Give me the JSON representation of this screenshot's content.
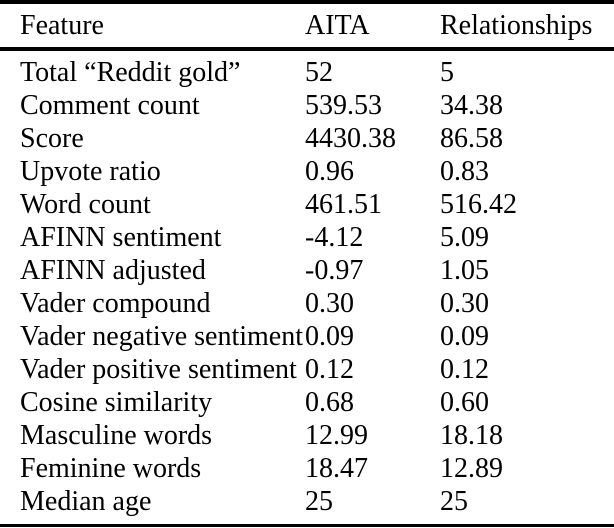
{
  "page": {
    "background_color": "#ffffff",
    "text_color": "#000000",
    "rule_color": "#000000"
  },
  "table": {
    "columns": [
      "Feature",
      "AITA",
      "Relationships"
    ],
    "rows": [
      [
        "Total “Reddit gold”",
        "52",
        "5"
      ],
      [
        "Comment count",
        "539.53",
        "34.38"
      ],
      [
        "Score",
        "4430.38",
        "86.58"
      ],
      [
        "Upvote ratio",
        "0.96",
        "0.83"
      ],
      [
        "Word count",
        "461.51",
        "516.42"
      ],
      [
        "AFINN sentiment",
        "-4.12",
        "5.09"
      ],
      [
        "AFINN adjusted",
        "-0.97",
        "1.05"
      ],
      [
        "Vader compound",
        "0.30",
        "0.30"
      ],
      [
        "Vader negative sentiment",
        "0.09",
        "0.09"
      ],
      [
        "Vader positive sentiment",
        "0.12",
        "0.12"
      ],
      [
        "Cosine similarity",
        "0.68",
        "0.60"
      ],
      [
        "Masculine words",
        "12.99",
        "18.18"
      ],
      [
        "Feminine words",
        "18.47",
        "12.89"
      ],
      [
        "Median age",
        "25",
        "25"
      ]
    ]
  }
}
